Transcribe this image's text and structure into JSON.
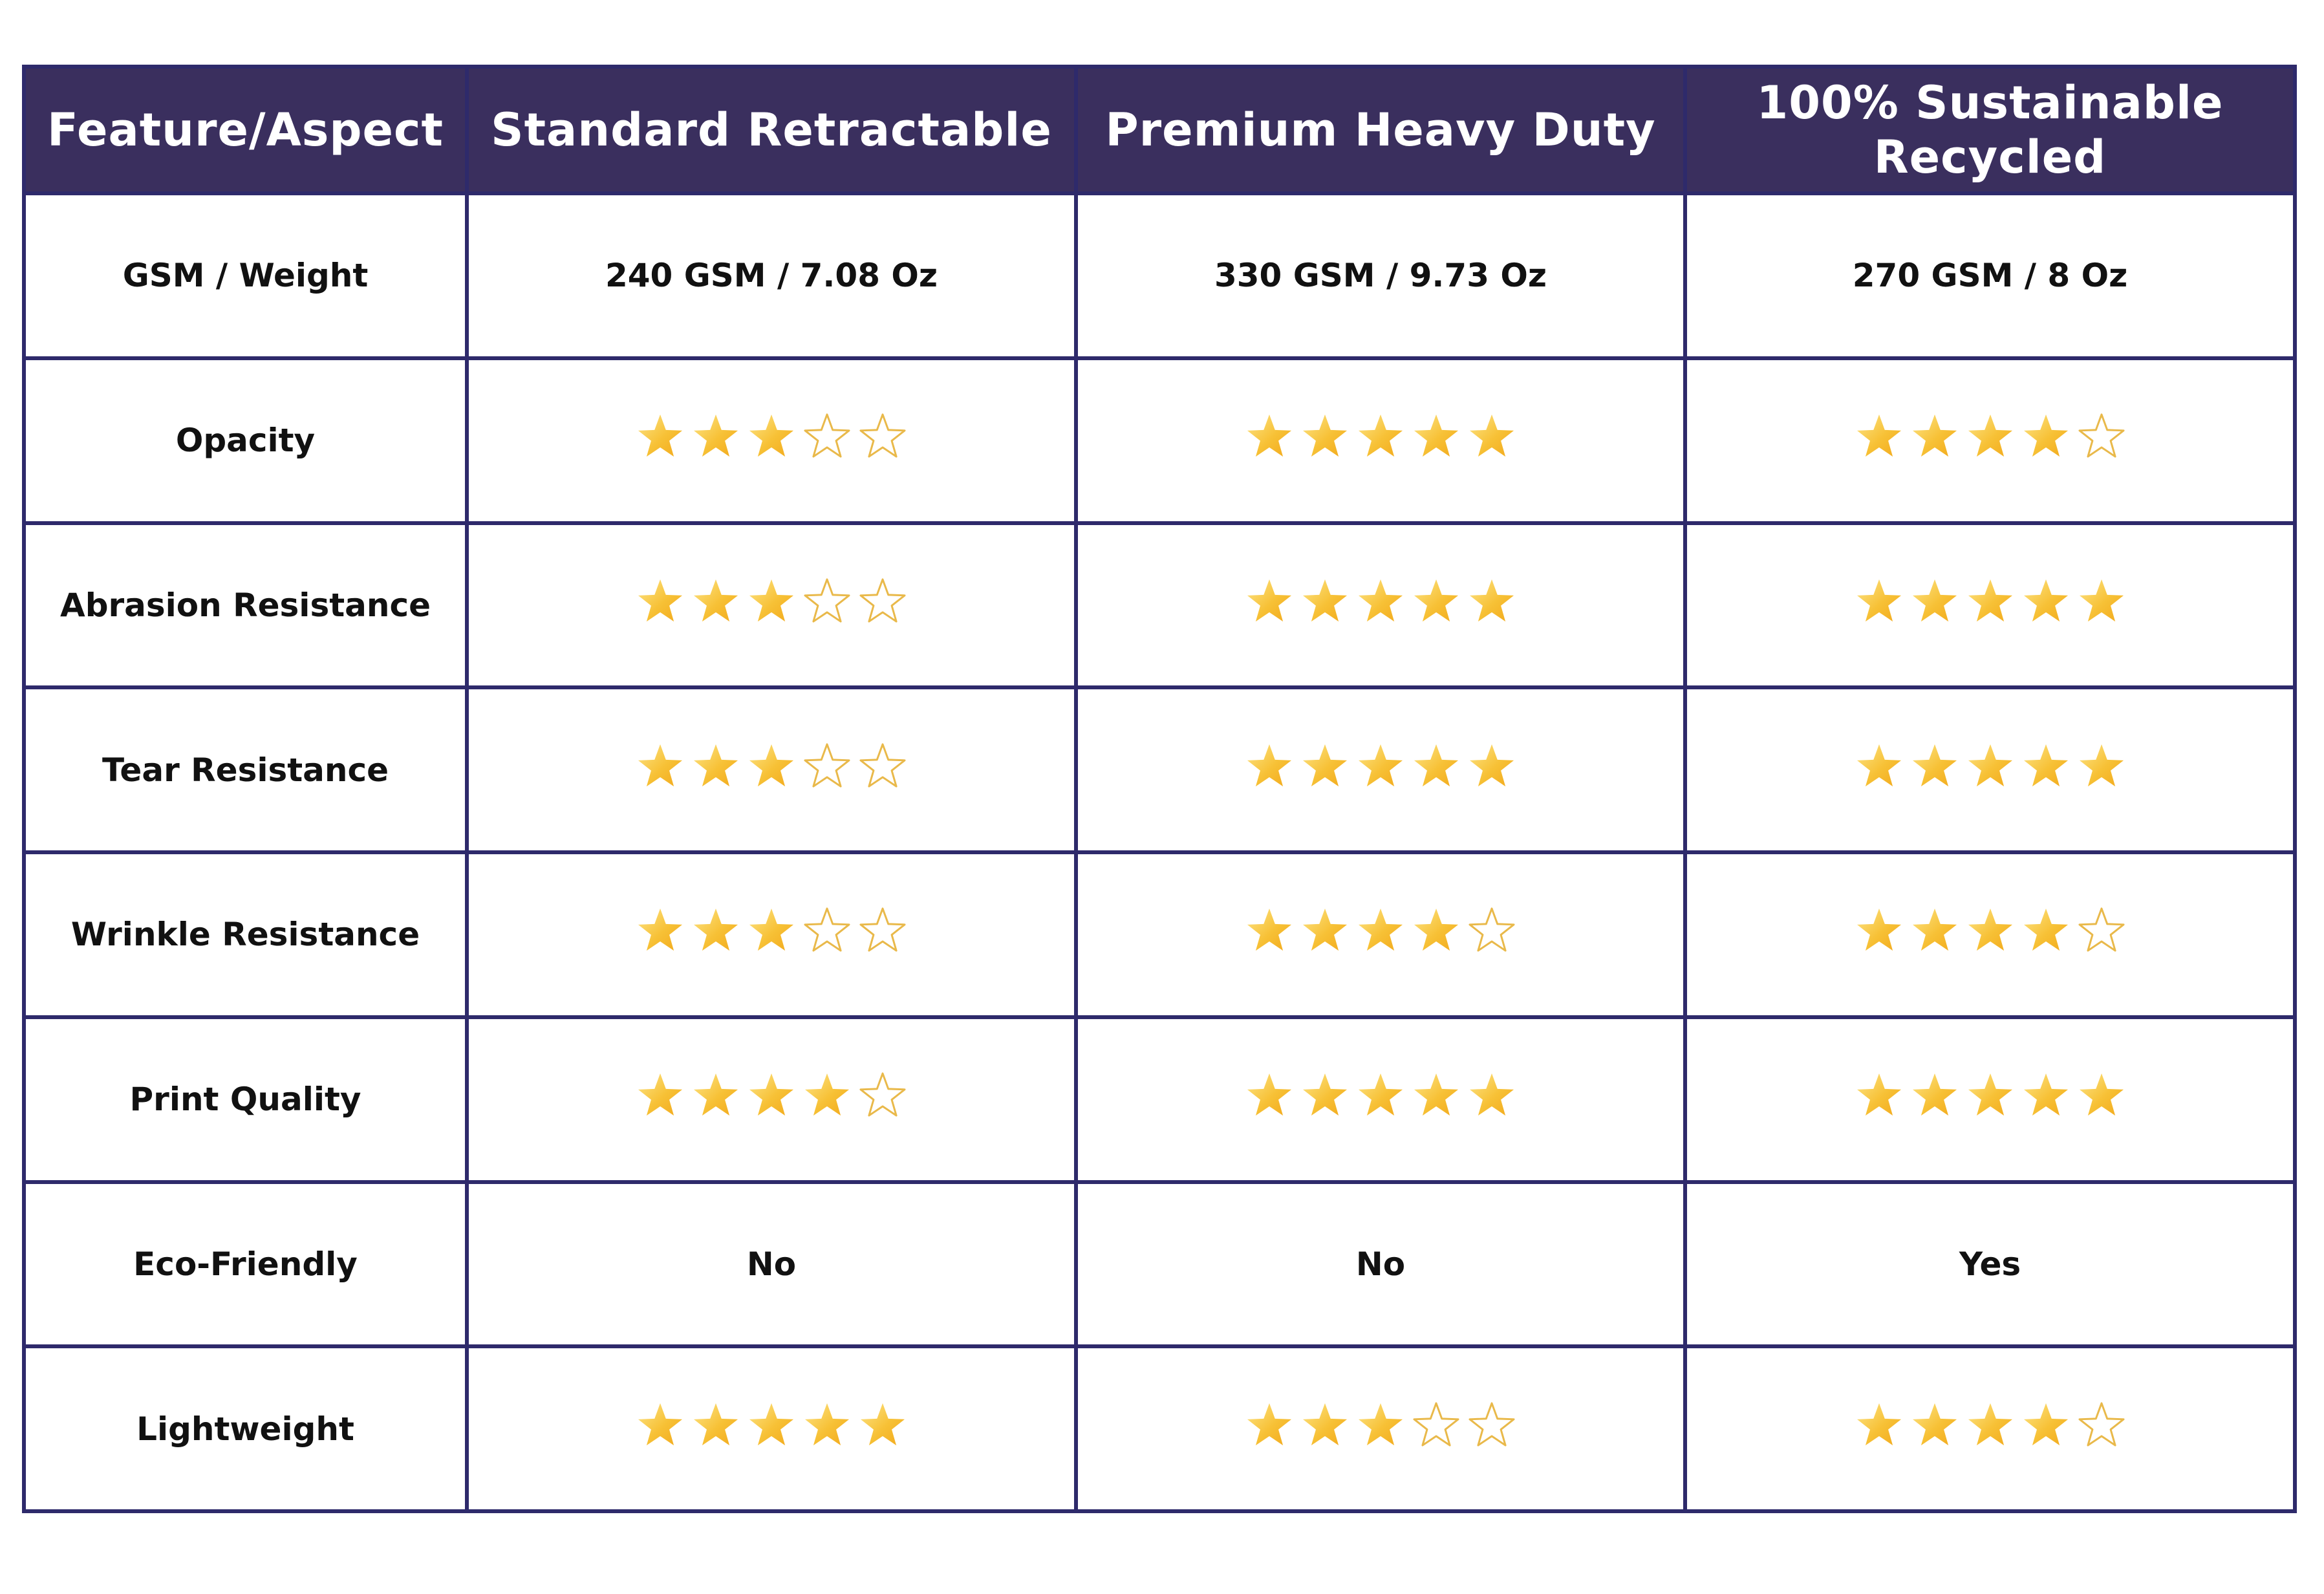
{
  "table": {
    "headers": [
      "Feature/Aspect",
      "Standard Retractable",
      "Premium Heavy Duty",
      "100% Sustainable Recycled"
    ],
    "rows": [
      {
        "feature": "GSM / Weight",
        "type": "text",
        "values": [
          "240 GSM / 7.08 Oz",
          "330 GSM / 9.73 Oz",
          "270 GSM / 8 Oz"
        ]
      },
      {
        "feature": "Opacity",
        "type": "stars",
        "values": [
          3,
          5,
          4
        ]
      },
      {
        "feature": "Abrasion Resistance",
        "type": "stars",
        "values": [
          3,
          5,
          5
        ]
      },
      {
        "feature": "Tear Resistance",
        "type": "stars",
        "values": [
          3,
          5,
          5
        ]
      },
      {
        "feature": "Wrinkle Resistance",
        "type": "stars",
        "values": [
          3,
          4,
          4
        ]
      },
      {
        "feature": "Print Quality",
        "type": "stars",
        "values": [
          4,
          5,
          5
        ]
      },
      {
        "feature": "Eco-Friendly",
        "type": "text",
        "values": [
          "No",
          "No",
          "Yes"
        ]
      },
      {
        "feature": "Lightweight",
        "type": "stars",
        "values": [
          5,
          3,
          4
        ]
      }
    ],
    "star_max": 5,
    "colors": {
      "header_bg": "#3a2f5e",
      "header_text": "#ffffff",
      "border": "#2e2a6b",
      "star_fill": "#f7c136",
      "star_fill_light": "#fde58a",
      "star_outline": "#e9b94a"
    }
  }
}
